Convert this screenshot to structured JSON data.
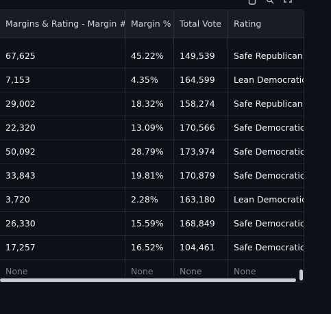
{
  "toolbar": {
    "icons": [
      "download-icon",
      "search-icon",
      "fullscreen-icon"
    ]
  },
  "table": {
    "headers": [
      "Margins & Rating - Margin #",
      "Margin %",
      "Total Vote",
      "Rating"
    ],
    "rows": [
      [
        "67,625",
        "45.22%",
        "149,539",
        "Safe Republican"
      ],
      [
        "7,153",
        "4.35%",
        "164,599",
        "Lean Democratic"
      ],
      [
        "29,002",
        "18.32%",
        "158,274",
        "Safe Republican"
      ],
      [
        "22,320",
        "13.09%",
        "170,566",
        "Safe Democratic"
      ],
      [
        "50,092",
        "28.79%",
        "173,974",
        "Safe Democratic"
      ],
      [
        "33,843",
        "19.81%",
        "170,879",
        "Safe Democratic"
      ],
      [
        "3,720",
        "2.28%",
        "163,180",
        "Lean Democratic"
      ],
      [
        "26,330",
        "15.59%",
        "168,849",
        "Safe Democratic"
      ],
      [
        "17,257",
        "16.52%",
        "104,461",
        "Safe Democratic"
      ],
      [
        "None",
        "None",
        "None",
        "None"
      ]
    ]
  },
  "colors": {
    "background": "#0e1117",
    "header_bg": "#1a1c24",
    "text": "#f2f4f7",
    "muted_text": "#7a808b",
    "border": "#262a33"
  }
}
